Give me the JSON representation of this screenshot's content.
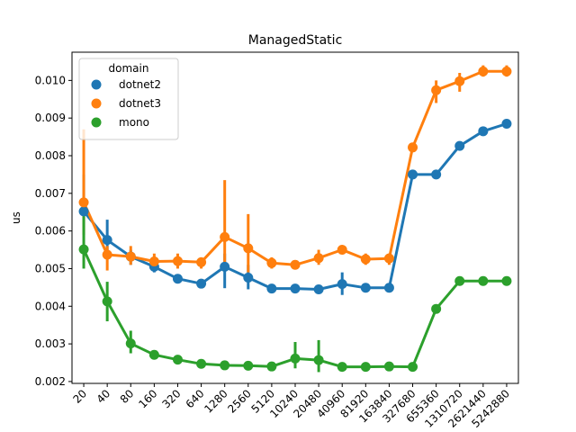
{
  "chart_data": {
    "type": "line",
    "title": "ManagedStatic",
    "xlabel": "",
    "ylabel": "us",
    "categories": [
      "20",
      "40",
      "80",
      "160",
      "320",
      "640",
      "1280",
      "2560",
      "5120",
      "10240",
      "20480",
      "40960",
      "81920",
      "163840",
      "327680",
      "655360",
      "1310720",
      "2621440",
      "5242880"
    ],
    "ylim": [
      0.00195,
      0.01075
    ],
    "yticks": [
      0.002,
      0.003,
      0.004,
      0.005,
      0.006,
      0.007,
      0.008,
      0.009,
      0.01
    ],
    "ytick_labels": [
      "0.002",
      "0.003",
      "0.004",
      "0.005",
      "0.006",
      "0.007",
      "0.008",
      "0.009",
      "0.010"
    ],
    "grid": false,
    "legend": {
      "title": "domain",
      "placement": "upper-left"
    },
    "series": [
      {
        "name": "dotnet2",
        "color": "#1f77b4",
        "values": [
          0.00652,
          0.00576,
          0.00532,
          0.00505,
          0.00473,
          0.0046,
          0.00505,
          0.00476,
          0.00447,
          0.00447,
          0.00445,
          0.00459,
          0.00449,
          0.00449,
          0.0075,
          0.0075,
          0.00826,
          0.00865,
          0.00885
        ],
        "ci_low": [
          0.0064,
          0.0053,
          0.0051,
          0.0049,
          0.00465,
          0.00452,
          0.00448,
          0.00445,
          0.0044,
          0.0044,
          0.0044,
          0.0043,
          0.0044,
          0.0044,
          0.00745,
          0.00745,
          0.0082,
          0.0086,
          0.0088
        ],
        "ci_high": [
          0.0075,
          0.0063,
          0.0055,
          0.0052,
          0.0048,
          0.0047,
          0.0054,
          0.0051,
          0.0045,
          0.0045,
          0.0045,
          0.0049,
          0.0046,
          0.0046,
          0.00755,
          0.00755,
          0.0083,
          0.0087,
          0.0089
        ]
      },
      {
        "name": "dotnet3",
        "color": "#ff7f0e",
        "values": [
          0.00676,
          0.00537,
          0.00532,
          0.00519,
          0.0052,
          0.00517,
          0.00584,
          0.00554,
          0.00515,
          0.0051,
          0.00528,
          0.0055,
          0.00525,
          0.00527,
          0.00822,
          0.00974,
          0.00998,
          0.01024,
          0.01024
        ],
        "ci_low": [
          0.0059,
          0.00495,
          0.0051,
          0.005,
          0.005,
          0.005,
          0.0051,
          0.0049,
          0.005,
          0.00502,
          0.0051,
          0.0054,
          0.0051,
          0.0051,
          0.0081,
          0.0094,
          0.0097,
          0.0101,
          0.0101
        ],
        "ci_high": [
          0.0087,
          0.0056,
          0.0056,
          0.0054,
          0.0054,
          0.0053,
          0.00735,
          0.00645,
          0.0053,
          0.0052,
          0.0055,
          0.0056,
          0.0054,
          0.0054,
          0.0083,
          0.01,
          0.0102,
          0.0104,
          0.0104
        ]
      },
      {
        "name": "mono",
        "color": "#2ca02c",
        "values": [
          0.00551,
          0.00413,
          0.00301,
          0.00271,
          0.00258,
          0.00247,
          0.00243,
          0.00242,
          0.0024,
          0.00261,
          0.00257,
          0.00239,
          0.00239,
          0.0024,
          0.00239,
          0.00393,
          0.00467,
          0.00467,
          0.00467
        ],
        "ci_low": [
          0.005,
          0.0036,
          0.00275,
          0.0026,
          0.00252,
          0.00242,
          0.00238,
          0.00237,
          0.00236,
          0.00235,
          0.00225,
          0.00235,
          0.00235,
          0.00236,
          0.00235,
          0.0039,
          0.00462,
          0.00462,
          0.00462
        ],
        "ci_high": [
          0.0065,
          0.00465,
          0.00335,
          0.0028,
          0.00264,
          0.00252,
          0.00248,
          0.00247,
          0.00244,
          0.00305,
          0.0031,
          0.00243,
          0.00243,
          0.00244,
          0.00243,
          0.00397,
          0.00472,
          0.00472,
          0.00472
        ]
      }
    ]
  }
}
